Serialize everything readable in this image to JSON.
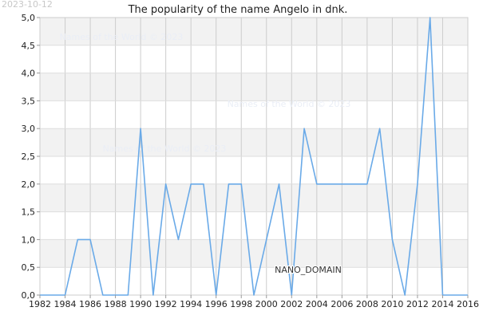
{
  "chart_data": {
    "type": "line",
    "title": "The popularity of the name Angelo in dnk.",
    "xlabel": "",
    "ylabel": "",
    "xlim": [
      1982,
      2016
    ],
    "ylim": [
      0,
      5
    ],
    "x_ticks": [
      "1982",
      "1984",
      "1986",
      "1988",
      "1990",
      "1992",
      "1994",
      "1996",
      "1998",
      "2000",
      "2002",
      "2004",
      "2006",
      "2008",
      "2010",
      "2012",
      "2014",
      "2016"
    ],
    "y_ticks": [
      "0,0",
      "0,5",
      "1,0",
      "1,5",
      "2,0",
      "2,5",
      "3,0",
      "3,5",
      "4,0",
      "4,5",
      "5,0"
    ],
    "grid": true,
    "line_color": "#6aaae8",
    "series": [
      {
        "x": [
          1982,
          1983,
          1984,
          1985,
          1986,
          1987,
          1988,
          1989,
          1990,
          1991,
          1992,
          1993,
          1994,
          1995,
          1996,
          1997,
          1998,
          1999,
          2000,
          2001,
          2002,
          2003,
          2004,
          2005,
          2006,
          2007,
          2008,
          2009,
          2010,
          2011,
          2012,
          2013,
          2014,
          2015,
          2016
        ],
        "values": [
          0,
          0,
          0,
          1,
          1,
          0,
          0,
          0,
          3,
          0,
          2,
          1,
          2,
          2,
          0,
          2,
          2,
          0,
          1,
          2,
          0,
          3,
          2,
          2,
          2,
          2,
          2,
          3,
          1,
          0,
          2,
          5,
          0,
          0,
          0
        ]
      }
    ]
  },
  "annotations": {
    "date_stamp": "2023-10-12",
    "watermark": "Names of the World © 2023",
    "tag": "NANO_DOMAIN"
  }
}
